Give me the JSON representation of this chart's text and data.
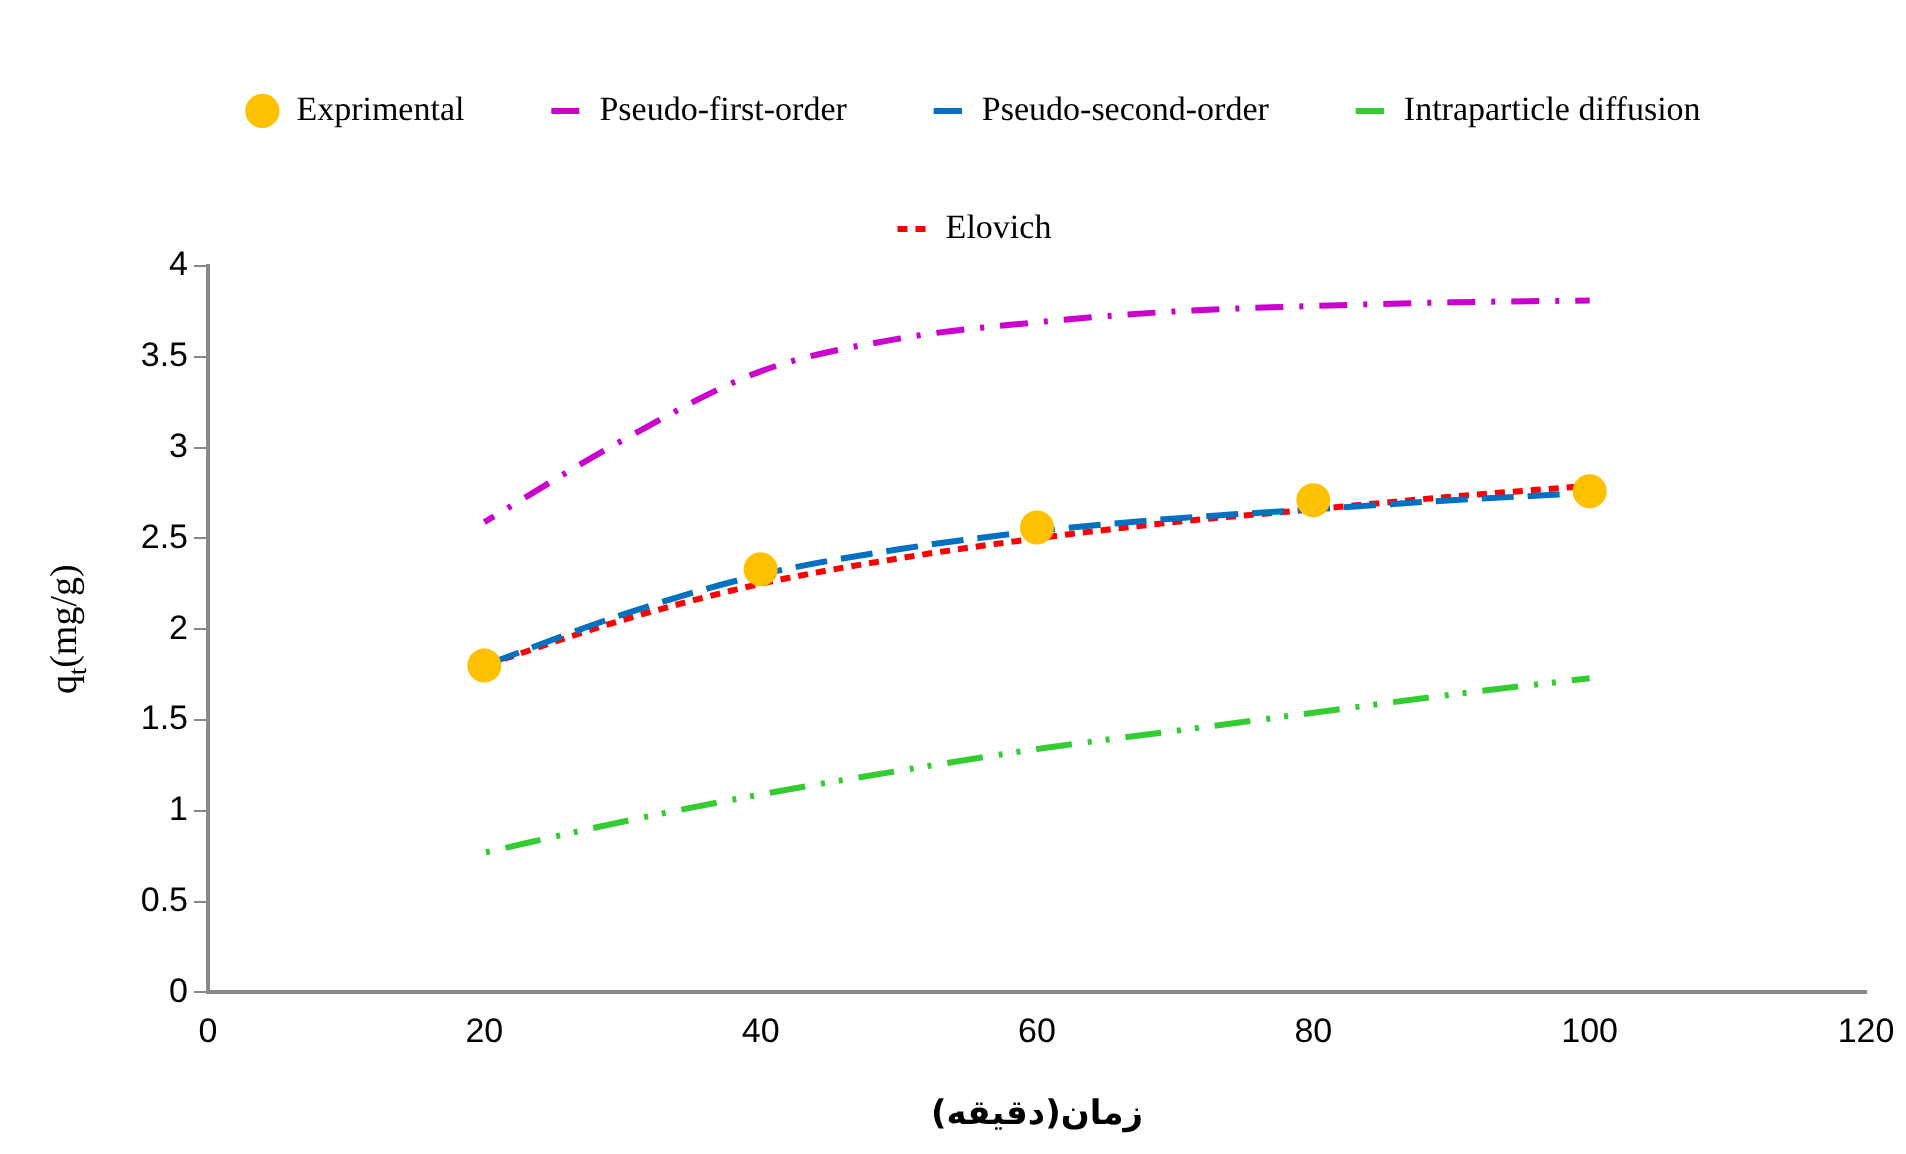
{
  "chart_data": {
    "type": "line",
    "xlabel": "زمان(دقیقه)",
    "ylabel": "q$_{t}$(mg/g)",
    "xlim": [
      0,
      120
    ],
    "xticks": [
      0,
      20,
      40,
      60,
      80,
      100,
      120
    ],
    "ylim": [
      0,
      4
    ],
    "yticks": [
      0,
      0.5,
      1,
      1.5,
      2,
      2.5,
      3,
      3.5,
      4
    ],
    "grid": false,
    "legend": "top",
    "series": [
      {
        "name": "Exprimental",
        "type": "scatter",
        "marker": "circle",
        "color": "#ffc000",
        "x": [
          20,
          40,
          60,
          80,
          100
        ],
        "values": [
          1.8,
          2.33,
          2.56,
          2.71,
          2.76
        ]
      },
      {
        "name": "Pseudo-first-order",
        "type": "line",
        "marker": "none",
        "line_style": "dashdot",
        "color": "#cc00cc",
        "x": [
          20,
          30,
          40,
          50,
          60,
          70,
          80,
          90,
          100
        ],
        "values": [
          2.59,
          3.04,
          3.42,
          3.6,
          3.69,
          3.75,
          3.78,
          3.8,
          3.81
        ]
      },
      {
        "name": "Pseudo-second-order",
        "type": "line",
        "marker": "none",
        "line_style": "dashed",
        "color": "#0070c0",
        "x": [
          20,
          30,
          40,
          50,
          60,
          70,
          80,
          90,
          100
        ],
        "values": [
          1.8,
          2.08,
          2.3,
          2.44,
          2.54,
          2.61,
          2.66,
          2.71,
          2.75
        ]
      },
      {
        "name": "Intraparticle diffusion",
        "type": "line",
        "marker": "none",
        "line_style": "dashdotdot",
        "color": "#33cc33",
        "x": [
          20,
          30,
          40,
          50,
          60,
          70,
          80,
          90,
          100
        ],
        "values": [
          0.77,
          0.94,
          1.09,
          1.22,
          1.34,
          1.44,
          1.54,
          1.64,
          1.73
        ]
      },
      {
        "name": "Elovich",
        "type": "line",
        "marker": "none",
        "line_style": "dotted",
        "color": "#ff0000",
        "x": [
          20,
          30,
          40,
          50,
          60,
          70,
          80,
          90,
          100
        ],
        "values": [
          1.8,
          2.05,
          2.25,
          2.39,
          2.5,
          2.59,
          2.66,
          2.73,
          2.79
        ]
      }
    ]
  }
}
